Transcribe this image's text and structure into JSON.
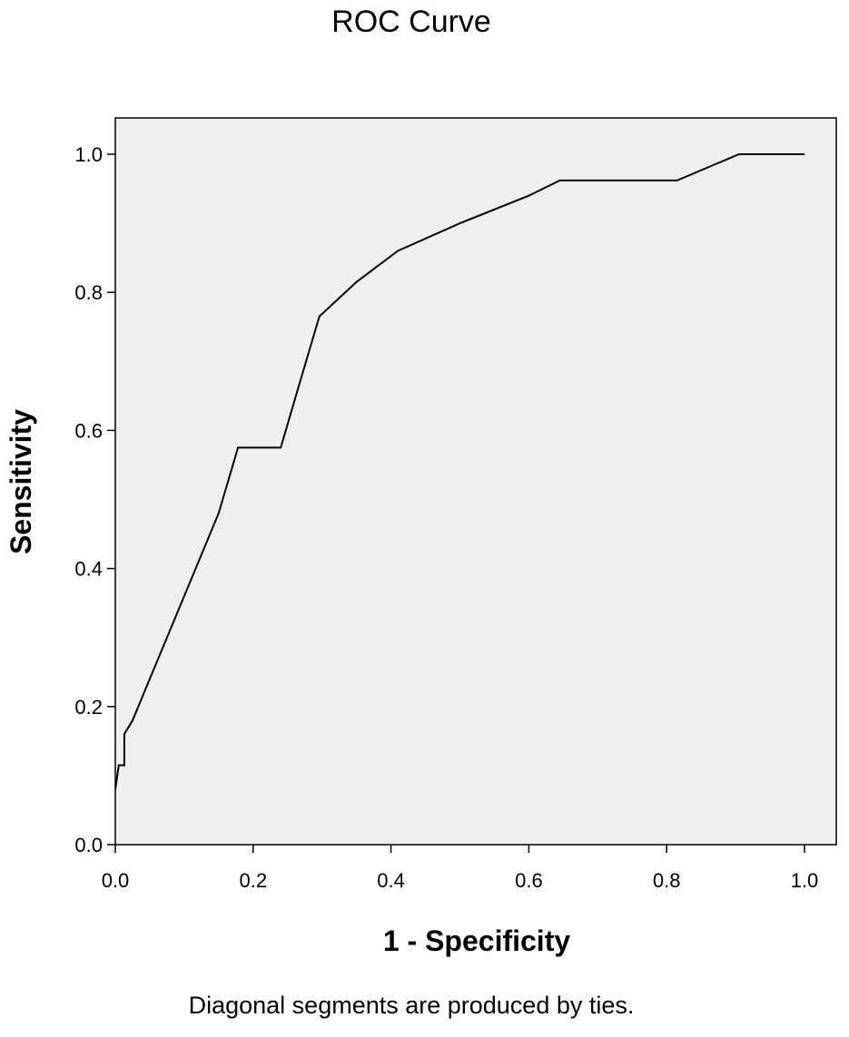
{
  "chart_data": {
    "type": "line",
    "title": "ROC Curve",
    "xlabel": "1 - Specificity",
    "ylabel": "Sensitivity",
    "xlim": [
      0.0,
      1.0
    ],
    "ylim": [
      0.0,
      1.0
    ],
    "x_ticks": [
      "0.0",
      "0.2",
      "0.4",
      "0.6",
      "0.8",
      "1.0"
    ],
    "y_ticks": [
      "0.0",
      "0.2",
      "0.4",
      "0.6",
      "0.8",
      "1.0"
    ],
    "grid": false,
    "plot_background": "#efefef",
    "line_color": "#000000",
    "footnote": "Diagonal segments are produced by ties.",
    "series": [
      {
        "x": [
          0.0,
          0.005,
          0.013,
          0.013,
          0.025,
          0.05,
          0.1,
          0.15,
          0.178,
          0.24,
          0.265,
          0.296,
          0.35,
          0.41,
          0.5,
          0.6,
          0.645,
          0.815,
          0.905,
          1.0
        ],
        "y": [
          0.08,
          0.115,
          0.115,
          0.16,
          0.18,
          0.24,
          0.36,
          0.48,
          0.575,
          0.575,
          0.66,
          0.765,
          0.815,
          0.86,
          0.9,
          0.94,
          0.962,
          0.962,
          1.0,
          1.0
        ]
      }
    ]
  }
}
